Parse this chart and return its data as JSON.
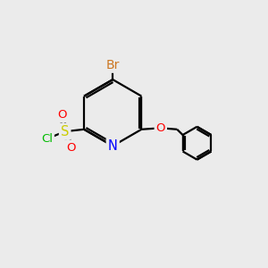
{
  "bg_color": "#ebebeb",
  "bond_color": "#000000",
  "bond_width": 1.6,
  "atom_colors": {
    "Br": "#cc7722",
    "N": "#0000ff",
    "O": "#ff0000",
    "S": "#cccc00",
    "Cl": "#00bb00"
  },
  "font_size": 9.5,
  "fig_size": [
    3.0,
    3.0
  ],
  "dpi": 100
}
